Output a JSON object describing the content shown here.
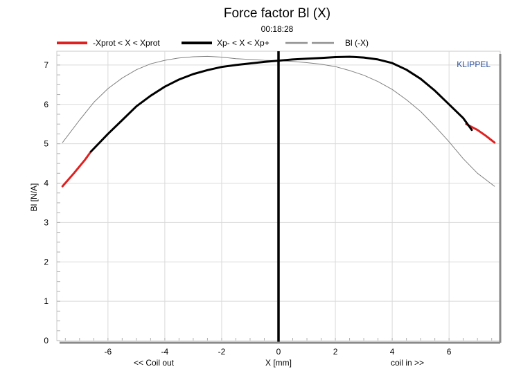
{
  "chart_data": {
    "type": "line",
    "title": "Force factor Bl (X)",
    "subtitle": "00:18:28",
    "watermark": "KLIPPEL",
    "xlabel": "X [mm]",
    "ylabel": "Bl [N/A]",
    "xlabel_left": "<< Coil out",
    "xlabel_right": "coil in >>",
    "xlim": [
      -7.8,
      7.8
    ],
    "ylim": [
      0,
      7.35
    ],
    "xticks": [
      -6,
      -4,
      -2,
      0,
      2,
      4,
      6
    ],
    "yticks": [
      0,
      1,
      2,
      3,
      4,
      5,
      6,
      7
    ],
    "grid": true,
    "legend_position": "top",
    "marker_line_x": 0,
    "colors": {
      "xprot_range": "#e02020",
      "xp_range": "#000000",
      "mirror": "#808080",
      "grid": "#d9d9d9",
      "watermark": "#2b4f9e"
    },
    "series": [
      {
        "name": "-Xprot < X < Xprot",
        "style": "thick-red",
        "x": [
          -7.6,
          -7.2,
          -6.8,
          -6.6
        ],
        "y": [
          3.92,
          4.25,
          4.6,
          4.8
        ]
      },
      {
        "name": "Xp- < X < Xp+",
        "style": "thick-black",
        "x": [
          -6.6,
          -6.0,
          -5.5,
          -5.0,
          -4.5,
          -4.0,
          -3.5,
          -3.0,
          -2.5,
          -2.0,
          -1.5,
          -1.0,
          -0.5,
          0.0,
          0.5,
          1.0,
          1.5,
          2.0,
          2.5,
          3.0,
          3.5,
          4.0,
          4.5,
          5.0,
          5.5,
          6.0,
          6.5,
          6.8
        ],
        "y": [
          4.8,
          5.25,
          5.6,
          5.95,
          6.22,
          6.45,
          6.63,
          6.77,
          6.87,
          6.95,
          7.0,
          7.04,
          7.08,
          7.11,
          7.14,
          7.16,
          7.18,
          7.2,
          7.21,
          7.19,
          7.14,
          7.05,
          6.88,
          6.65,
          6.35,
          6.0,
          5.65,
          5.35
        ]
      },
      {
        "name": "",
        "style": "thick-red",
        "x": [
          6.6,
          7.0,
          7.3,
          7.6
        ],
        "y": [
          5.5,
          5.35,
          5.2,
          5.03
        ]
      },
      {
        "name": "Bl (-X)",
        "style": "thin-gray",
        "x": [
          -7.6,
          -7.0,
          -6.5,
          -6.0,
          -5.5,
          -5.0,
          -4.5,
          -4.0,
          -3.5,
          -3.0,
          -2.5,
          -2.0,
          -1.5,
          -1.0,
          -0.5,
          0.0,
          0.5,
          1.0,
          1.5,
          2.0,
          2.5,
          3.0,
          3.5,
          4.0,
          4.5,
          5.0,
          5.5,
          6.0,
          6.5,
          7.0,
          7.6
        ],
        "y": [
          5.03,
          5.6,
          6.05,
          6.4,
          6.67,
          6.88,
          7.03,
          7.12,
          7.18,
          7.21,
          7.22,
          7.2,
          7.16,
          7.14,
          7.12,
          7.11,
          7.09,
          7.06,
          7.02,
          6.96,
          6.86,
          6.74,
          6.58,
          6.38,
          6.12,
          5.82,
          5.45,
          5.05,
          4.62,
          4.25,
          3.92
        ]
      }
    ]
  }
}
